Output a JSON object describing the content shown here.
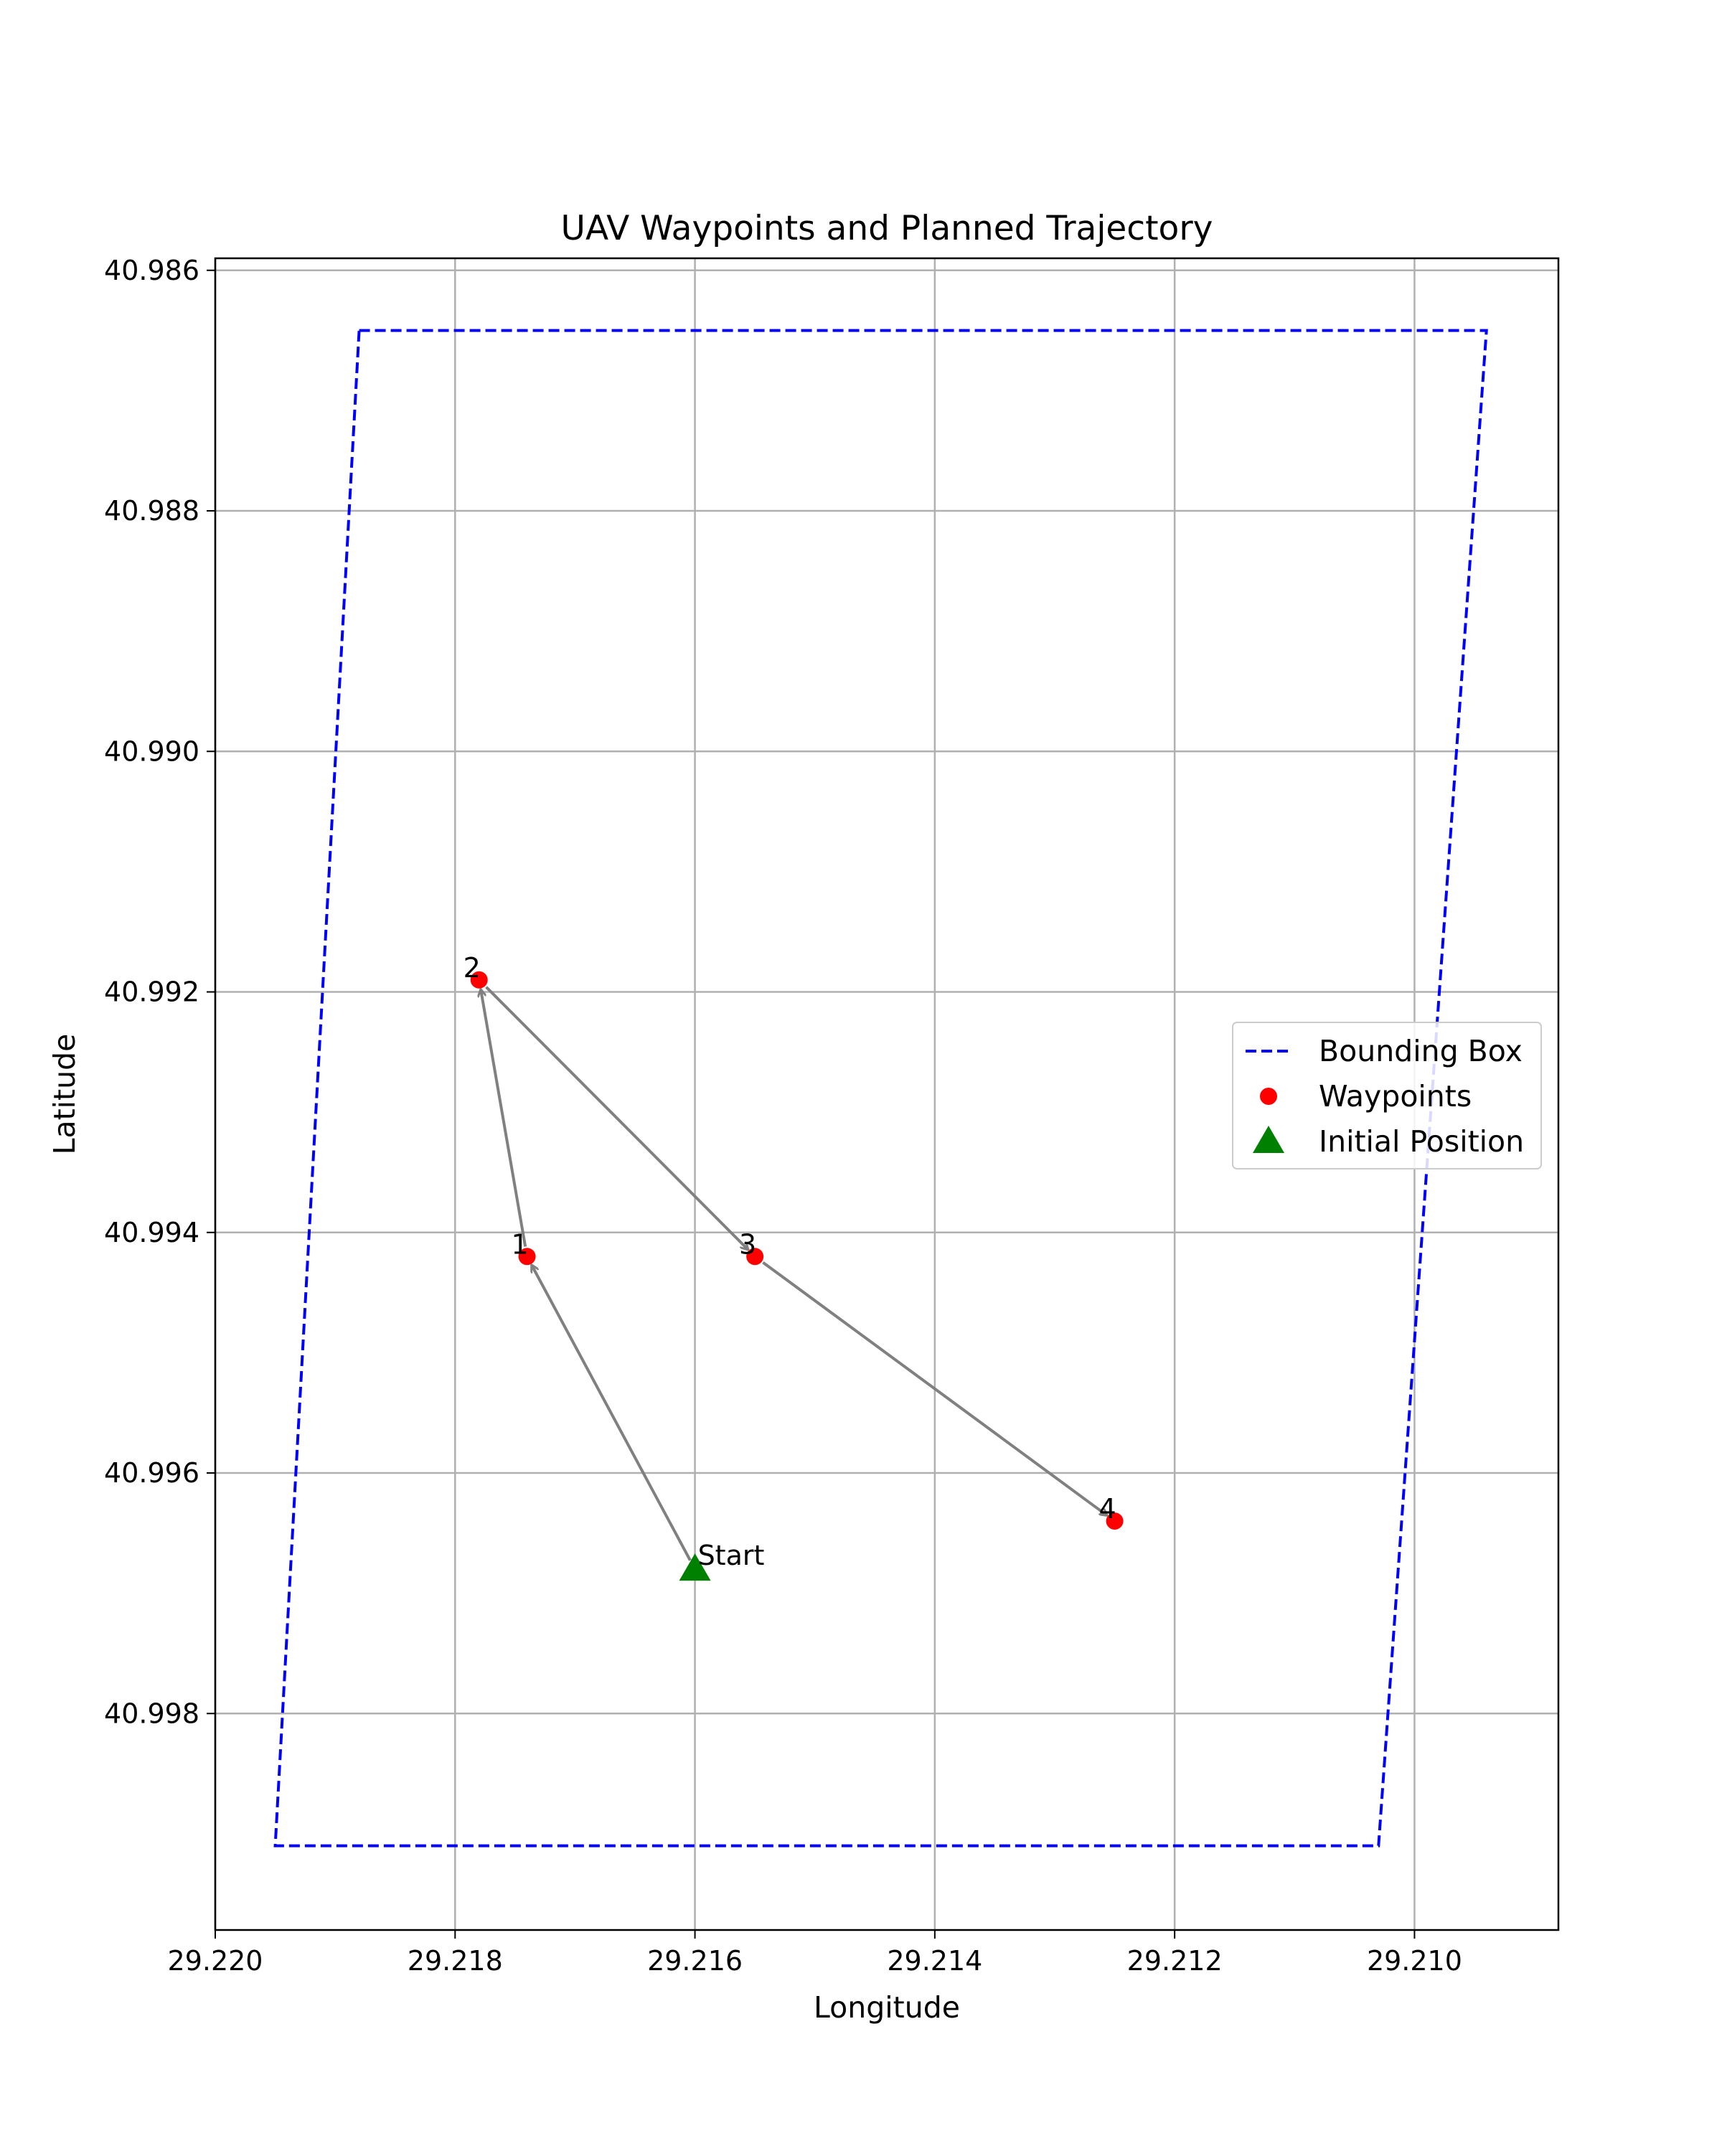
{
  "chart_data": {
    "type": "scatter",
    "title": "UAV Waypoints and Planned Trajectory",
    "xlabel": "Longitude",
    "ylabel": "Latitude",
    "xlim": [
      29.22,
      29.2088
    ],
    "ylim": [
      40.9859,
      40.9998
    ],
    "x_inverted": true,
    "y_inverted": true,
    "grid": true,
    "legend_position": "center-right",
    "xticks": [
      "29.220",
      "29.218",
      "29.216",
      "29.214",
      "29.212",
      "29.210"
    ],
    "xtick_values": [
      29.22,
      29.218,
      29.216,
      29.214,
      29.212,
      29.21
    ],
    "yticks": [
      "40.986",
      "40.988",
      "40.990",
      "40.992",
      "40.994",
      "40.996",
      "40.998"
    ],
    "ytick_values": [
      40.986,
      40.988,
      40.99,
      40.992,
      40.994,
      40.996,
      40.998
    ],
    "series": [
      {
        "name": "Bounding Box",
        "kind": "line",
        "style": "dashed",
        "color": "#0000ff",
        "x": [
          29.2188,
          29.2094,
          29.2103,
          29.2195,
          29.2188
        ],
        "y": [
          40.9865,
          40.9865,
          40.9991,
          40.9991,
          40.9865
        ]
      },
      {
        "name": "Waypoints",
        "kind": "scatter",
        "marker": "circle",
        "color": "#ff0000",
        "labels": [
          "1",
          "2",
          "3",
          "4"
        ],
        "x": [
          29.2174,
          29.2178,
          29.2155,
          29.2125
        ],
        "y": [
          40.9942,
          40.9919,
          40.9942,
          40.9964
        ]
      },
      {
        "name": "Initial Position",
        "kind": "scatter",
        "marker": "triangle",
        "color": "#008000",
        "labels": [
          "Start"
        ],
        "x": [
          29.216
        ],
        "y": [
          40.9968
        ]
      }
    ],
    "trajectory": {
      "color": "#808080",
      "order": [
        "Start",
        "1",
        "2",
        "3",
        "4"
      ]
    }
  }
}
